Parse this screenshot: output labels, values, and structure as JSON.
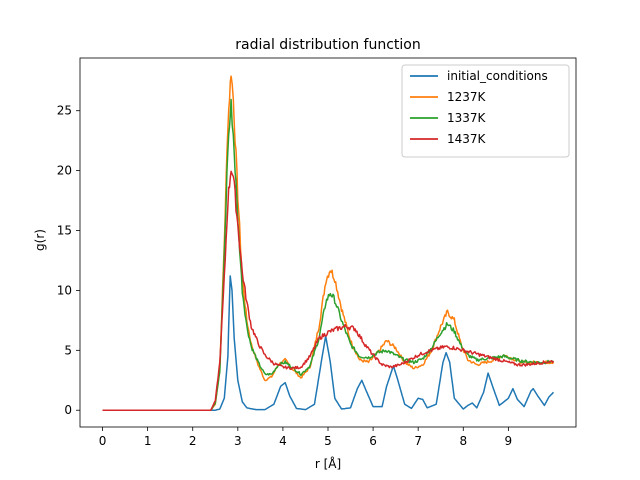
{
  "chart_data": {
    "type": "line",
    "title": "radial distribution function",
    "xlabel": "r [Å]",
    "ylabel": "g(r)",
    "xlim": [
      -0.5,
      10.5
    ],
    "ylim": [
      -1.4,
      29.4
    ],
    "xticks": [
      0,
      1,
      2,
      3,
      4,
      5,
      6,
      7,
      8,
      9
    ],
    "xtick_labels": [
      "0",
      "1",
      "2",
      "3",
      "4",
      "5",
      "6",
      "7",
      "8",
      "9"
    ],
    "yticks": [
      0,
      5,
      10,
      15,
      20,
      25
    ],
    "ytick_labels": [
      "0",
      "5",
      "10",
      "15",
      "20",
      "25"
    ],
    "grid": false,
    "legend_position": "top-right",
    "series": [
      {
        "name": "initial_conditions",
        "color": "#1f77b4",
        "x": [
          0,
          2.5,
          2.6,
          2.7,
          2.78,
          2.83,
          2.87,
          2.92,
          3.0,
          3.1,
          3.2,
          3.4,
          3.6,
          3.8,
          3.95,
          4.05,
          4.15,
          4.3,
          4.5,
          4.7,
          4.85,
          4.95,
          5.05,
          5.15,
          5.3,
          5.5,
          5.65,
          5.75,
          5.85,
          6.0,
          6.2,
          6.3,
          6.45,
          6.55,
          6.7,
          6.85,
          7.0,
          7.1,
          7.2,
          7.4,
          7.55,
          7.62,
          7.7,
          7.8,
          8.0,
          8.1,
          8.2,
          8.3,
          8.45,
          8.55,
          8.65,
          8.8,
          9.0,
          9.1,
          9.2,
          9.35,
          9.5,
          9.55,
          9.65,
          9.8,
          9.9,
          10.0
        ],
        "y": [
          0,
          0,
          0.1,
          1.0,
          4.5,
          11.2,
          10.0,
          6.0,
          2.5,
          0.7,
          0.2,
          0.05,
          0.05,
          0.5,
          2.0,
          2.3,
          1.2,
          0.15,
          0.05,
          0.5,
          4.0,
          6.2,
          4.0,
          1.0,
          0.1,
          0.2,
          1.8,
          2.5,
          1.6,
          0.3,
          0.3,
          2.0,
          3.7,
          2.5,
          0.5,
          0.15,
          1.0,
          0.9,
          0.2,
          0.5,
          4.0,
          4.8,
          4.0,
          1.0,
          0.1,
          0.4,
          0.6,
          0.2,
          1.5,
          3.1,
          2.0,
          0.4,
          1.0,
          1.8,
          0.9,
          0.3,
          1.6,
          1.8,
          1.2,
          0.4,
          1.1,
          1.5
        ]
      },
      {
        "name": "1237K",
        "color": "#ff7f0e",
        "x": [
          0,
          2.4,
          2.5,
          2.6,
          2.7,
          2.78,
          2.85,
          2.9,
          3.0,
          3.1,
          3.2,
          3.3,
          3.45,
          3.6,
          3.75,
          3.9,
          4.05,
          4.2,
          4.4,
          4.6,
          4.8,
          4.95,
          5.05,
          5.15,
          5.3,
          5.5,
          5.7,
          5.9,
          6.1,
          6.3,
          6.5,
          6.7,
          6.9,
          7.1,
          7.3,
          7.5,
          7.65,
          7.8,
          7.95,
          8.1,
          8.3,
          8.5,
          8.7,
          8.9,
          9.1,
          9.3,
          9.6,
          9.8,
          10.0
        ],
        "y": [
          0,
          0,
          0.5,
          3.5,
          14.0,
          24.0,
          28.3,
          26.0,
          18.0,
          11.0,
          7.5,
          5.5,
          3.8,
          2.5,
          2.8,
          3.8,
          4.2,
          3.5,
          2.7,
          3.6,
          7.0,
          10.8,
          11.8,
          11.0,
          8.5,
          5.8,
          4.2,
          4.0,
          4.8,
          5.8,
          5.2,
          4.0,
          3.5,
          3.8,
          5.0,
          7.0,
          8.2,
          7.5,
          5.5,
          4.2,
          3.8,
          4.0,
          4.2,
          4.6,
          4.3,
          4.0,
          4.0,
          4.0,
          4.0
        ]
      },
      {
        "name": "1337K",
        "color": "#2ca02c",
        "x": [
          0,
          2.4,
          2.5,
          2.6,
          2.7,
          2.78,
          2.85,
          2.9,
          3.0,
          3.1,
          3.2,
          3.3,
          3.45,
          3.6,
          3.75,
          3.9,
          4.05,
          4.2,
          4.4,
          4.6,
          4.8,
          4.95,
          5.05,
          5.15,
          5.3,
          5.5,
          5.7,
          5.9,
          6.1,
          6.3,
          6.5,
          6.7,
          6.9,
          7.1,
          7.3,
          7.5,
          7.65,
          7.8,
          7.95,
          8.1,
          8.3,
          8.5,
          8.7,
          8.9,
          9.1,
          9.3,
          9.6,
          9.8,
          10.0
        ],
        "y": [
          0,
          0,
          0.6,
          3.2,
          13.0,
          22.0,
          25.5,
          23.0,
          16.0,
          10.0,
          7.0,
          5.3,
          4.0,
          3.0,
          3.0,
          3.8,
          4.0,
          3.6,
          3.0,
          3.7,
          6.0,
          9.0,
          9.8,
          9.2,
          7.5,
          5.5,
          4.5,
          4.4,
          4.8,
          5.0,
          4.6,
          4.2,
          4.0,
          4.3,
          5.2,
          6.5,
          7.2,
          6.6,
          5.4,
          4.6,
          4.2,
          4.3,
          4.4,
          4.5,
          4.3,
          4.1,
          4.0,
          4.0,
          4.1
        ]
      },
      {
        "name": "1437K",
        "color": "#d62728",
        "x": [
          0,
          2.4,
          2.5,
          2.6,
          2.7,
          2.78,
          2.85,
          2.9,
          3.0,
          3.1,
          3.2,
          3.3,
          3.45,
          3.6,
          3.8,
          4.0,
          4.2,
          4.4,
          4.6,
          4.8,
          5.0,
          5.2,
          5.4,
          5.6,
          5.8,
          6.0,
          6.2,
          6.4,
          6.6,
          6.8,
          7.0,
          7.2,
          7.4,
          7.6,
          7.8,
          8.0,
          8.2,
          8.4,
          8.6,
          8.8,
          9.0,
          9.2,
          9.4,
          9.6,
          9.8,
          10.0
        ],
        "y": [
          0,
          0,
          0.8,
          4.0,
          11.0,
          17.5,
          20.3,
          19.5,
          15.5,
          11.5,
          9.0,
          7.0,
          5.6,
          4.6,
          3.9,
          3.6,
          3.5,
          3.6,
          4.5,
          6.0,
          6.5,
          6.8,
          7.0,
          6.8,
          5.6,
          4.6,
          3.8,
          3.6,
          3.8,
          4.2,
          4.6,
          4.9,
          5.1,
          5.3,
          5.2,
          5.0,
          4.8,
          4.6,
          4.4,
          4.2,
          4.0,
          3.8,
          3.8,
          3.9,
          4.0,
          4.1
        ]
      }
    ]
  }
}
